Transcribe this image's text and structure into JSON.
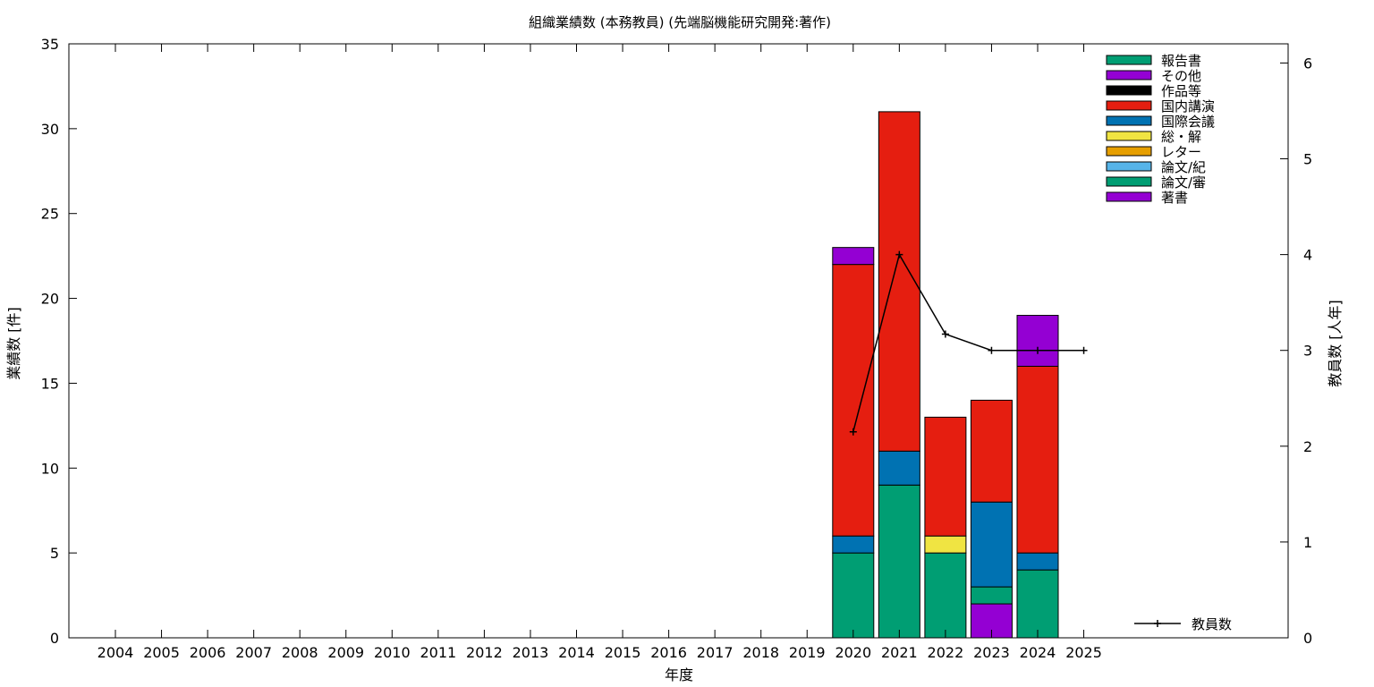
{
  "chart_data": {
    "type": "bar",
    "title": "組織業績数 (本務教員) (先端脳機能研究開発:著作)",
    "xlabel": "年度",
    "ylabel": "業績数 [件]",
    "y2label": "教員数 [人年]",
    "ylim": [
      0,
      35
    ],
    "y2lim": [
      0,
      6.2
    ],
    "yticks": [
      0,
      5,
      10,
      15,
      20,
      25,
      30,
      35
    ],
    "y2ticks": [
      0,
      1,
      2,
      3,
      4,
      5,
      6
    ],
    "stacked": true,
    "legend_position": "top-right",
    "categories": [
      "2004",
      "2005",
      "2006",
      "2007",
      "2008",
      "2009",
      "2010",
      "2011",
      "2012",
      "2013",
      "2014",
      "2015",
      "2016",
      "2017",
      "2018",
      "2019",
      "2020",
      "2021",
      "2022",
      "2023",
      "2024",
      "2025"
    ],
    "series": [
      {
        "name": "著書",
        "color": "#9400d3",
        "values": [
          0,
          0,
          0,
          0,
          0,
          0,
          0,
          0,
          0,
          0,
          0,
          0,
          0,
          0,
          0,
          0,
          0,
          0,
          0,
          2,
          0,
          0
        ]
      },
      {
        "name": "論文/審",
        "color": "#009e73",
        "values": [
          0,
          0,
          0,
          0,
          0,
          0,
          0,
          0,
          0,
          0,
          0,
          0,
          0,
          0,
          0,
          0,
          5,
          9,
          5,
          1,
          4,
          0
        ]
      },
      {
        "name": "論文/紀",
        "color": "#56b4e9",
        "values": [
          0,
          0,
          0,
          0,
          0,
          0,
          0,
          0,
          0,
          0,
          0,
          0,
          0,
          0,
          0,
          0,
          0,
          0,
          0,
          0,
          0,
          0
        ]
      },
      {
        "name": "レター",
        "color": "#e69f00",
        "values": [
          0,
          0,
          0,
          0,
          0,
          0,
          0,
          0,
          0,
          0,
          0,
          0,
          0,
          0,
          0,
          0,
          0,
          0,
          0,
          0,
          0,
          0
        ]
      },
      {
        "name": "総・解",
        "color": "#f0e442",
        "values": [
          0,
          0,
          0,
          0,
          0,
          0,
          0,
          0,
          0,
          0,
          0,
          0,
          0,
          0,
          0,
          0,
          0,
          0,
          1,
          0,
          0,
          0
        ]
      },
      {
        "name": "国際会議",
        "color": "#0072b2",
        "values": [
          0,
          0,
          0,
          0,
          0,
          0,
          0,
          0,
          0,
          0,
          0,
          0,
          0,
          0,
          0,
          0,
          1,
          2,
          0,
          5,
          1,
          0
        ]
      },
      {
        "name": "国内講演",
        "color": "#e51e10",
        "values": [
          0,
          0,
          0,
          0,
          0,
          0,
          0,
          0,
          0,
          0,
          0,
          0,
          0,
          0,
          0,
          0,
          16,
          20,
          7,
          6,
          11,
          0
        ]
      },
      {
        "name": "作品等",
        "color": "#000000",
        "values": [
          0,
          0,
          0,
          0,
          0,
          0,
          0,
          0,
          0,
          0,
          0,
          0,
          0,
          0,
          0,
          0,
          0,
          0,
          0,
          0,
          0,
          0
        ]
      },
      {
        "name": "その他",
        "color": "#9400d3",
        "values": [
          0,
          0,
          0,
          0,
          0,
          0,
          0,
          0,
          0,
          0,
          0,
          0,
          0,
          0,
          0,
          0,
          1,
          0,
          0,
          0,
          3,
          0
        ]
      },
      {
        "name": "報告書",
        "color": "#009e73",
        "values": [
          0,
          0,
          0,
          0,
          0,
          0,
          0,
          0,
          0,
          0,
          0,
          0,
          0,
          0,
          0,
          0,
          0,
          0,
          0,
          0,
          0,
          0
        ]
      }
    ],
    "line_series": {
      "name": "教員数",
      "color": "#000000",
      "axis": "y2",
      "x": [
        "2020",
        "2021",
        "2022",
        "2023",
        "2024",
        "2025"
      ],
      "values": [
        2.15,
        4.0,
        3.17,
        3.0,
        3.0,
        3.0
      ]
    }
  }
}
